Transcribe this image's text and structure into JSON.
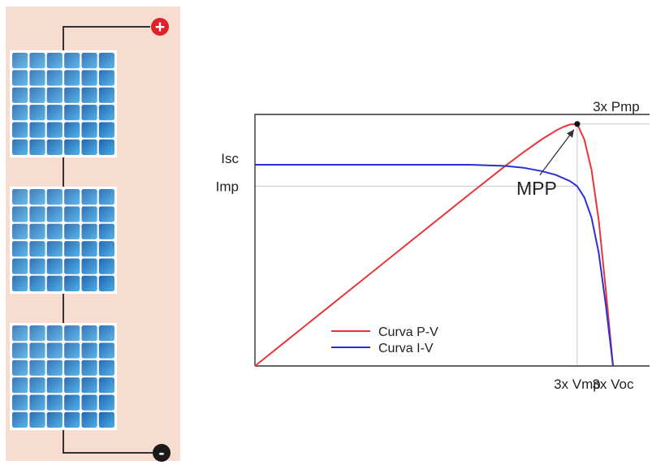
{
  "colors": {
    "panel_background": "#f7dcd0",
    "wire": "#333333",
    "positive_terminal": "#e0202a",
    "negative_terminal": "#1a1a1a",
    "pv_curve": "#e8353c",
    "iv_curve": "#2b2fd6",
    "axis": "#333333",
    "guide_line": "#c8c8c8",
    "cell_dark": "#1e62ad",
    "cell_light": "#4aaee6"
  },
  "panel": {
    "positive_symbol": "+",
    "negative_symbol": "-",
    "module_count": 3
  },
  "chart_data": {
    "type": "line",
    "series": [
      {
        "name": "Curva P-V",
        "color": "#e8353c",
        "x": [
          0,
          0.1,
          0.2,
          0.3,
          0.4,
          0.5,
          0.6,
          0.7,
          0.75,
          0.8,
          0.84,
          0.86,
          0.88,
          0.9,
          0.92,
          0.94,
          0.96,
          0.98,
          1.0
        ],
        "y": [
          0,
          0.114,
          0.228,
          0.342,
          0.456,
          0.57,
          0.684,
          0.796,
          0.85,
          0.9,
          0.935,
          0.95,
          0.96,
          0.962,
          0.9,
          0.78,
          0.58,
          0.3,
          0
        ]
      },
      {
        "name": "Curva I-V",
        "color": "#2b2fd6",
        "x": [
          0,
          0.2,
          0.4,
          0.6,
          0.7,
          0.75,
          0.8,
          0.84,
          0.88,
          0.9,
          0.92,
          0.94,
          0.96,
          0.98,
          1.0
        ],
        "y": [
          0.8,
          0.8,
          0.8,
          0.8,
          0.795,
          0.788,
          0.775,
          0.76,
          0.735,
          0.715,
          0.67,
          0.59,
          0.45,
          0.24,
          0
        ]
      }
    ],
    "mpp": {
      "x": 0.9,
      "y": 0.962,
      "label": "MPP"
    },
    "y_ticks": [
      {
        "label": "Isc",
        "value": 0.8
      },
      {
        "label": "Imp",
        "value": 0.715
      }
    ],
    "x_ticks": [
      {
        "label": "3x Vmp",
        "value": 0.9
      },
      {
        "label": "3x Voc",
        "value": 1.0
      }
    ],
    "pmp_label": "3x Pmp",
    "xlim": [
      0,
      1.0
    ],
    "ylim": [
      0,
      1.0
    ],
    "legend": {
      "position": "bottom-left"
    }
  }
}
